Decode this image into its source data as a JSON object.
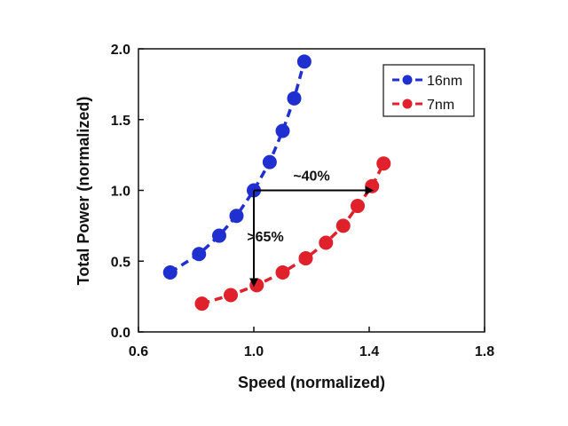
{
  "chart_data": {
    "type": "line",
    "title": "",
    "xlabel": "Speed (normalized)",
    "ylabel": "Total Power (normalized)",
    "xlim": [
      0.6,
      1.8
    ],
    "ylim": [
      0.0,
      2.0
    ],
    "xticks": [
      "0.6",
      "1.0",
      "1.4",
      "1.8"
    ],
    "yticks": [
      "0.0",
      "0.5",
      "1.0",
      "1.5",
      "2.0"
    ],
    "xtick_values": [
      0.6,
      1.0,
      1.4,
      1.8
    ],
    "ytick_values": [
      0.0,
      0.5,
      1.0,
      1.5,
      2.0
    ],
    "legend_position": "top-right",
    "series": [
      {
        "name": "16nm",
        "color": "#1f2fd0",
        "x": [
          0.71,
          0.81,
          0.88,
          0.94,
          1.0,
          1.055,
          1.1,
          1.14,
          1.175
        ],
        "y": [
          0.42,
          0.55,
          0.68,
          0.82,
          1.0,
          1.2,
          1.42,
          1.65,
          1.91
        ]
      },
      {
        "name": "7nm",
        "color": "#e0202a",
        "x": [
          0.82,
          0.92,
          1.01,
          1.1,
          1.18,
          1.25,
          1.31,
          1.36,
          1.41,
          1.45
        ],
        "y": [
          0.2,
          0.26,
          0.33,
          0.42,
          0.52,
          0.63,
          0.75,
          0.89,
          1.03,
          1.19
        ]
      }
    ],
    "annotations": [
      {
        "id": "speed-gain",
        "label": "~40%",
        "from": [
          1.0,
          1.0
        ],
        "to": [
          1.41,
          1.0
        ],
        "label_at": [
          1.2,
          1.07
        ]
      },
      {
        "id": "power-reduction",
        "label": ">65%",
        "from": [
          1.0,
          1.0
        ],
        "to": [
          1.0,
          0.33
        ],
        "label_at": [
          1.04,
          0.64
        ]
      }
    ]
  },
  "colors": {
    "axis": "#111111",
    "arrow": "#000000",
    "background": "#ffffff"
  }
}
